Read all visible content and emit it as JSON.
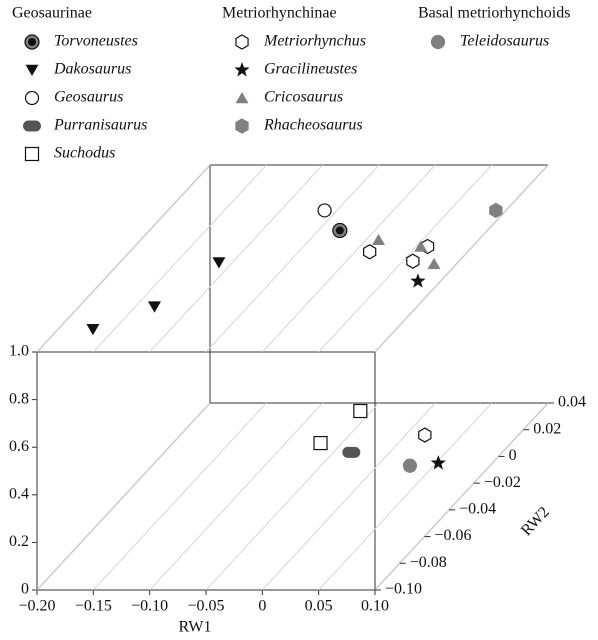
{
  "chart_data": {
    "type": "scatter3d",
    "xlabel": "RW1",
    "ylabel": "RW2",
    "xlim": [
      -0.2,
      0.1
    ],
    "ylim": [
      -0.1,
      0.04
    ],
    "zlim": [
      0,
      1
    ],
    "xticks": [
      {
        "value": -0.2,
        "label": "−0.20"
      },
      {
        "value": -0.15,
        "label": "−0.15"
      },
      {
        "value": -0.1,
        "label": "−0.10"
      },
      {
        "value": -0.05,
        "label": "−0.05"
      },
      0,
      0.05,
      {
        "value": 0.1,
        "label": "0.10"
      }
    ],
    "yticks": [
      {
        "value": -0.1,
        "label": "−0.10"
      },
      {
        "value": -0.08,
        "label": "−0.08"
      },
      {
        "value": -0.06,
        "label": "−0.06"
      },
      {
        "value": -0.04,
        "label": "−0.04"
      },
      {
        "value": -0.02,
        "label": "−0.02"
      },
      0,
      0.02,
      0.04
    ],
    "zticks": [
      0,
      0.2,
      0.4,
      0.6,
      0.8,
      {
        "value": 1,
        "label": "1.0"
      }
    ],
    "grid": true,
    "groups": [
      {
        "name": "Geosaurinae",
        "series": [
          {
            "name": "Torvoneustes",
            "marker": "circle-dot",
            "color": "#808080",
            "x": [
              -0.031
            ],
            "y": [
              -0.009
            ],
            "z": [
              1
            ]
          },
          {
            "name": "Dakosaurus",
            "marker": "triangle-down",
            "color": "#111111",
            "x": [
              -0.169,
              -0.133,
              -0.112
            ],
            "y": [
              -0.083,
              -0.066,
              -0.033
            ],
            "z": [
              1,
              1,
              1
            ]
          },
          {
            "name": "Geosaurus",
            "marker": "circle-open",
            "color": "#ffffff",
            "x": [
              -0.061
            ],
            "y": [
              0.006
            ],
            "z": [
              1
            ]
          },
          {
            "name": "Purranisaurus",
            "marker": "pill",
            "color": "#555555",
            "x": [
              -0.034
            ],
            "y": [
              0.003
            ],
            "z": [
              0
            ]
          },
          {
            "name": "Suchodus",
            "marker": "square-open",
            "color": "#ffffff",
            "x": [
              -0.06,
              -0.069
            ],
            "y": [
              0.034,
              0.01
            ],
            "z": [
              0,
              0
            ]
          }
        ]
      },
      {
        "name": "Metriorhynchinae",
        "series": [
          {
            "name": "Metriorhynchus",
            "marker": "hexagon-open",
            "color": "#ffffff",
            "x": [
              0.013,
              0.06,
              0.059,
              0.017
            ],
            "y": [
              -0.025,
              -0.021,
              -0.032,
              0.016
            ],
            "z": [
              1,
              1,
              1,
              0
            ]
          },
          {
            "name": "Gracilineustes",
            "marker": "star",
            "color": "#111111",
            "x": [
              0.08,
              0.052
            ],
            "y": [
              -0.047,
              -0.005
            ],
            "z": [
              1,
              0
            ]
          },
          {
            "name": "Cricosaurus",
            "marker": "triangle",
            "color": "#808080",
            "x": [
              0.011,
              0.054,
              0.08
            ],
            "y": [
              -0.016,
              -0.021,
              -0.034
            ],
            "z": [
              1,
              1,
              1
            ]
          },
          {
            "name": "Rhacheosaurus",
            "marker": "hexagon",
            "color": "#808080",
            "x": [
              0.091
            ],
            "y": [
              0.006
            ],
            "z": [
              1
            ]
          }
        ]
      },
      {
        "name": "Basal metriorhynchoids",
        "series": [
          {
            "name": "Teleidosaurus",
            "marker": "circle",
            "color": "#808080",
            "x": [
              0.029
            ],
            "y": [
              -0.007
            ],
            "z": [
              0
            ]
          }
        ]
      }
    ]
  }
}
